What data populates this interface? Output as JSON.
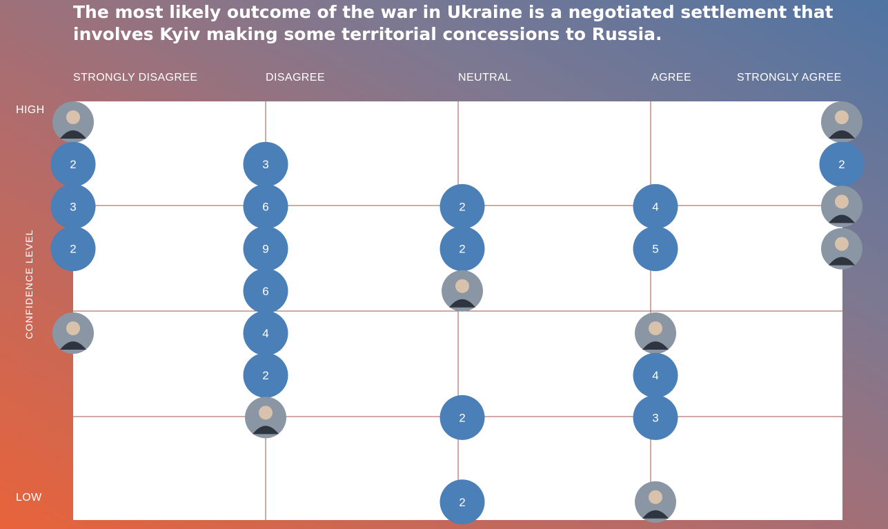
{
  "chart_data": {
    "type": "scatter",
    "title": "The most likely outcome of the war in Ukraine is a negotiated settlement that involves Kyiv making some territorial concessions to Russia.",
    "x_categories": [
      "STRONGLY DISAGREE",
      "DISAGREE",
      "NEUTRAL",
      "AGREE",
      "STRONGLY AGREE"
    ],
    "ylabel": "CONFIDENCE LEVEL",
    "y_high_label": "HIGH",
    "y_low_label": "LOW",
    "ylim": [
      1,
      10
    ],
    "colors": {
      "bubble": "#4a7fb8",
      "grid": "#a0524a",
      "avatar": "#8a96a3"
    },
    "points": [
      {
        "col": "STRONGLY DISAGREE",
        "confidence": 10,
        "kind": "avatar"
      },
      {
        "col": "STRONGLY DISAGREE",
        "confidence": 9,
        "kind": "count",
        "count": 2
      },
      {
        "col": "STRONGLY DISAGREE",
        "confidence": 8,
        "kind": "count",
        "count": 3
      },
      {
        "col": "STRONGLY DISAGREE",
        "confidence": 7,
        "kind": "count",
        "count": 2
      },
      {
        "col": "STRONGLY DISAGREE",
        "confidence": 5,
        "kind": "avatar"
      },
      {
        "col": "DISAGREE",
        "confidence": 9,
        "kind": "count",
        "count": 3
      },
      {
        "col": "DISAGREE",
        "confidence": 8,
        "kind": "count",
        "count": 6
      },
      {
        "col": "DISAGREE",
        "confidence": 7,
        "kind": "count",
        "count": 9
      },
      {
        "col": "DISAGREE",
        "confidence": 6,
        "kind": "count",
        "count": 6
      },
      {
        "col": "DISAGREE",
        "confidence": 5,
        "kind": "count",
        "count": 4
      },
      {
        "col": "DISAGREE",
        "confidence": 4,
        "kind": "count",
        "count": 2
      },
      {
        "col": "DISAGREE",
        "confidence": 3,
        "kind": "avatar"
      },
      {
        "col": "NEUTRAL",
        "confidence": 8,
        "kind": "count",
        "count": 2
      },
      {
        "col": "NEUTRAL",
        "confidence": 7,
        "kind": "count",
        "count": 2
      },
      {
        "col": "NEUTRAL",
        "confidence": 6,
        "kind": "avatar"
      },
      {
        "col": "NEUTRAL",
        "confidence": 3,
        "kind": "count",
        "count": 2
      },
      {
        "col": "NEUTRAL",
        "confidence": 1,
        "kind": "count",
        "count": 2
      },
      {
        "col": "AGREE",
        "confidence": 8,
        "kind": "count",
        "count": 4
      },
      {
        "col": "AGREE",
        "confidence": 7,
        "kind": "count",
        "count": 5
      },
      {
        "col": "AGREE",
        "confidence": 5,
        "kind": "avatar"
      },
      {
        "col": "AGREE",
        "confidence": 4,
        "kind": "count",
        "count": 4
      },
      {
        "col": "AGREE",
        "confidence": 3,
        "kind": "count",
        "count": 3
      },
      {
        "col": "AGREE",
        "confidence": 1,
        "kind": "avatar"
      },
      {
        "col": "STRONGLY AGREE",
        "confidence": 10,
        "kind": "avatar"
      },
      {
        "col": "STRONGLY AGREE",
        "confidence": 9,
        "kind": "count",
        "count": 2
      },
      {
        "col": "STRONGLY AGREE",
        "confidence": 8,
        "kind": "avatar"
      },
      {
        "col": "STRONGLY AGREE",
        "confidence": 7,
        "kind": "avatar"
      }
    ]
  }
}
